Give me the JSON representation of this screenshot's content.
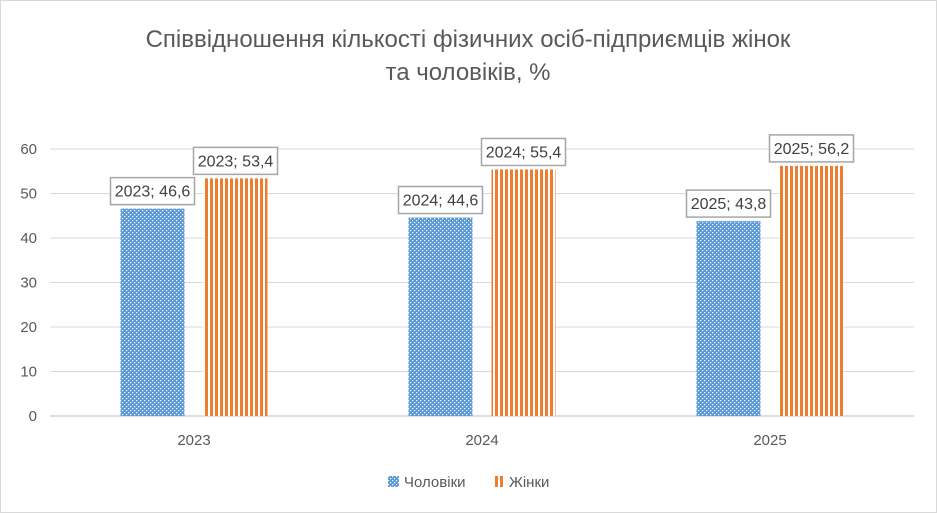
{
  "chart_data": {
    "type": "bar",
    "title_lines": [
      "Співвідношення кількості фізичних осіб-підприємців жінок",
      "та чоловіків, %"
    ],
    "categories": [
      "2023",
      "2024",
      "2025"
    ],
    "series": [
      {
        "name": "Чоловіки",
        "values": [
          46.6,
          44.6,
          43.8
        ],
        "labels": [
          "2023; 46,6",
          "2024; 44,6",
          "2025; 43,8"
        ],
        "color": "#5b9bd5",
        "pattern": "dotted"
      },
      {
        "name": "Жінки",
        "values": [
          53.4,
          55.4,
          56.2
        ],
        "labels": [
          "2023; 53,4",
          "2024; 55,4",
          "2025; 56,2"
        ],
        "color": "#ed7d31",
        "pattern": "vertical-stripes"
      }
    ],
    "y_ticks": [
      "0",
      "10",
      "20",
      "30",
      "40",
      "50",
      "60"
    ],
    "ylim": [
      0,
      60
    ],
    "grid": true,
    "legend_position": "bottom"
  }
}
